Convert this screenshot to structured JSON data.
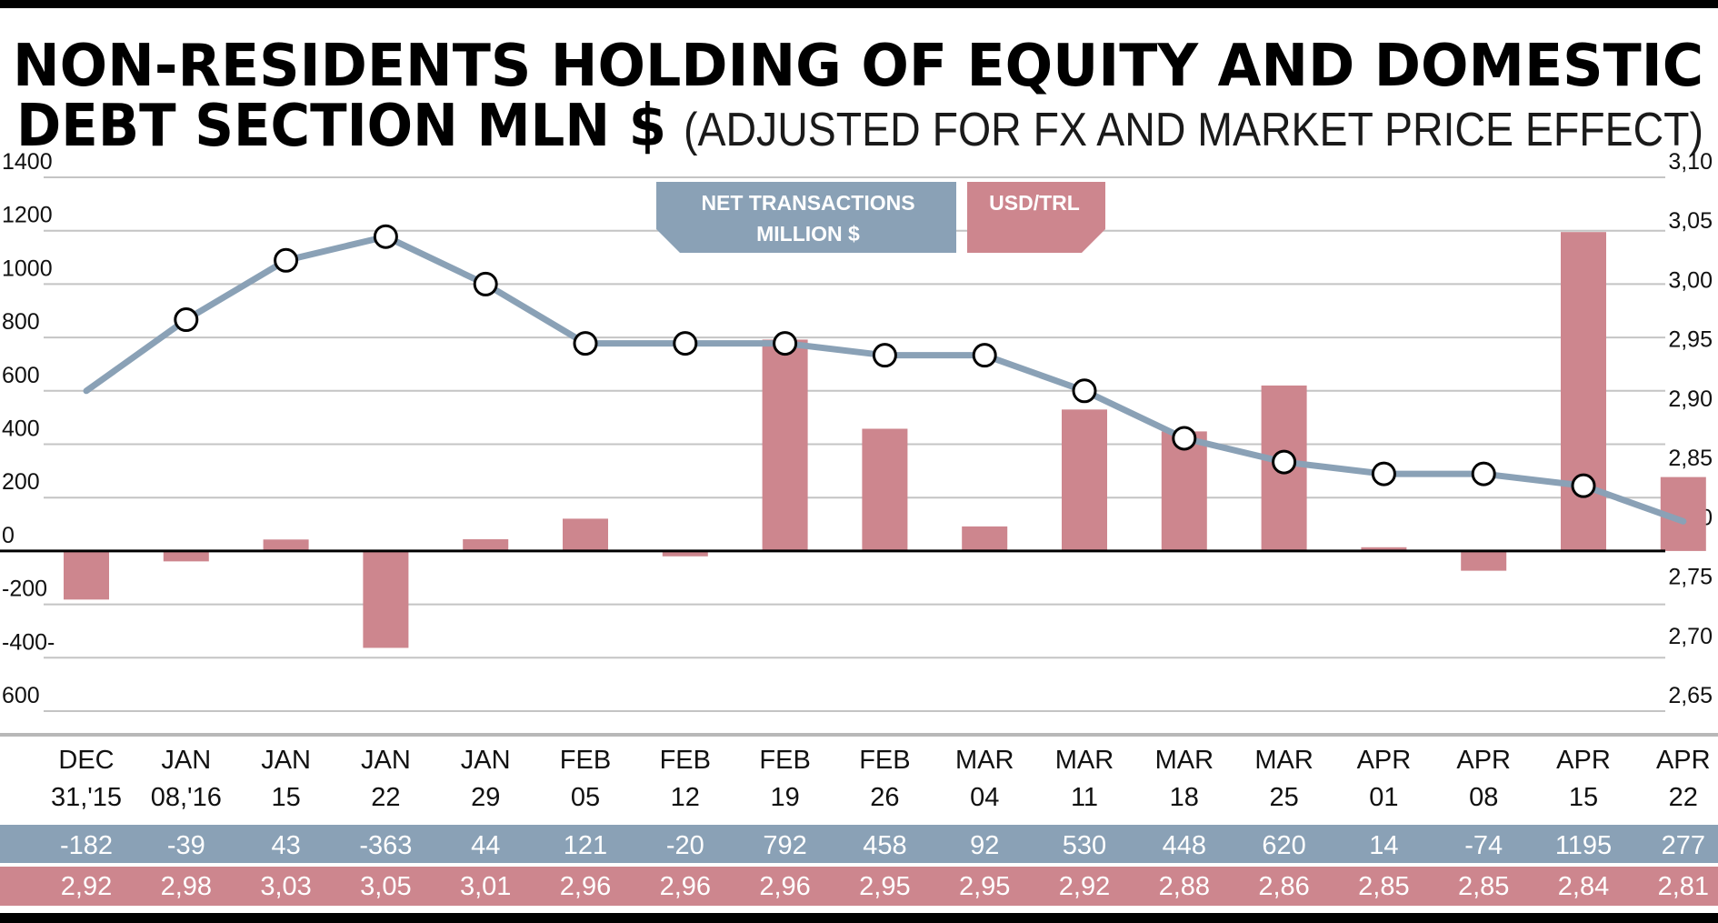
{
  "title_line1": "NON-RESIDENTS HOLDING OF EQUITY AND DOMESTIC",
  "title_line2": "DEBT SECTION MLN $",
  "subtitle": "(ADJUSTED FOR FX AND MARKET PRICE EFFECT)",
  "legend": [
    {
      "label_lines": [
        "NET TRANSACTIONS",
        "MILLION $"
      ],
      "color": "#8aa1b6"
    },
    {
      "label_lines": [
        "USD/TRL"
      ],
      "color": "#cd868e"
    }
  ],
  "colors": {
    "bars": "#cd868e",
    "line": "#8aa1b6",
    "grid": "#c4c4c4",
    "frame": "#000000"
  },
  "chart_data": {
    "type": "bar",
    "categories": [
      [
        "DEC",
        "31,'15"
      ],
      [
        "JAN",
        "08,'16"
      ],
      [
        "JAN",
        "15"
      ],
      [
        "JAN",
        "22"
      ],
      [
        "JAN",
        "29"
      ],
      [
        "FEB",
        "05"
      ],
      [
        "FEB",
        "12"
      ],
      [
        "FEB",
        "19"
      ],
      [
        "FEB",
        "26"
      ],
      [
        "MAR",
        "04"
      ],
      [
        "MAR",
        "11"
      ],
      [
        "MAR",
        "18"
      ],
      [
        "MAR",
        "25"
      ],
      [
        "APR",
        "01"
      ],
      [
        "APR",
        "08"
      ],
      [
        "APR",
        "15"
      ],
      [
        "APR",
        "22"
      ]
    ],
    "net_transactions": [
      -182,
      -39,
      43,
      -363,
      44,
      121,
      -20,
      792,
      458,
      92,
      530,
      448,
      620,
      14,
      -74,
      1195,
      277
    ],
    "usd_trl": [
      2.92,
      2.98,
      3.03,
      3.05,
      3.01,
      2.96,
      2.96,
      2.96,
      2.95,
      2.95,
      2.92,
      2.88,
      2.86,
      2.85,
      2.85,
      2.84,
      2.81
    ],
    "net_transactions_labels": [
      "-182",
      "-39",
      "43",
      "-363",
      "44",
      "121",
      "-20",
      "792",
      "458",
      "92",
      "530",
      "448",
      "620",
      "14",
      "-74",
      "1195",
      "277"
    ],
    "usd_trl_labels": [
      "2,92",
      "2,98",
      "3,03",
      "3,05",
      "3,01",
      "2,96",
      "2,96",
      "2,96",
      "2,95",
      "2,95",
      "2,92",
      "2,88",
      "2,86",
      "2,85",
      "2,85",
      "2,84",
      "2,81"
    ],
    "left_axis": {
      "ylim": [
        -600,
        1400
      ],
      "ticks": [
        1400,
        1200,
        1000,
        800,
        600,
        400,
        200,
        0,
        -200,
        -400,
        -600
      ],
      "tick_labels": [
        "1400",
        "1200",
        "1000",
        "800",
        "600",
        "400",
        "200",
        "0",
        "-200",
        "-400-",
        "600"
      ]
    },
    "right_axis": {
      "ylim": [
        2.65,
        3.1
      ],
      "ticks": [
        3.1,
        3.05,
        3.0,
        2.95,
        2.9,
        2.85,
        2.8,
        2.75,
        2.7,
        2.65
      ],
      "tick_labels": [
        "3,10",
        "3,05",
        "3,00",
        "2,95",
        "2,90",
        "2,85",
        "2,80",
        "2,75",
        "2,70",
        "2,65"
      ]
    },
    "grid": true
  }
}
